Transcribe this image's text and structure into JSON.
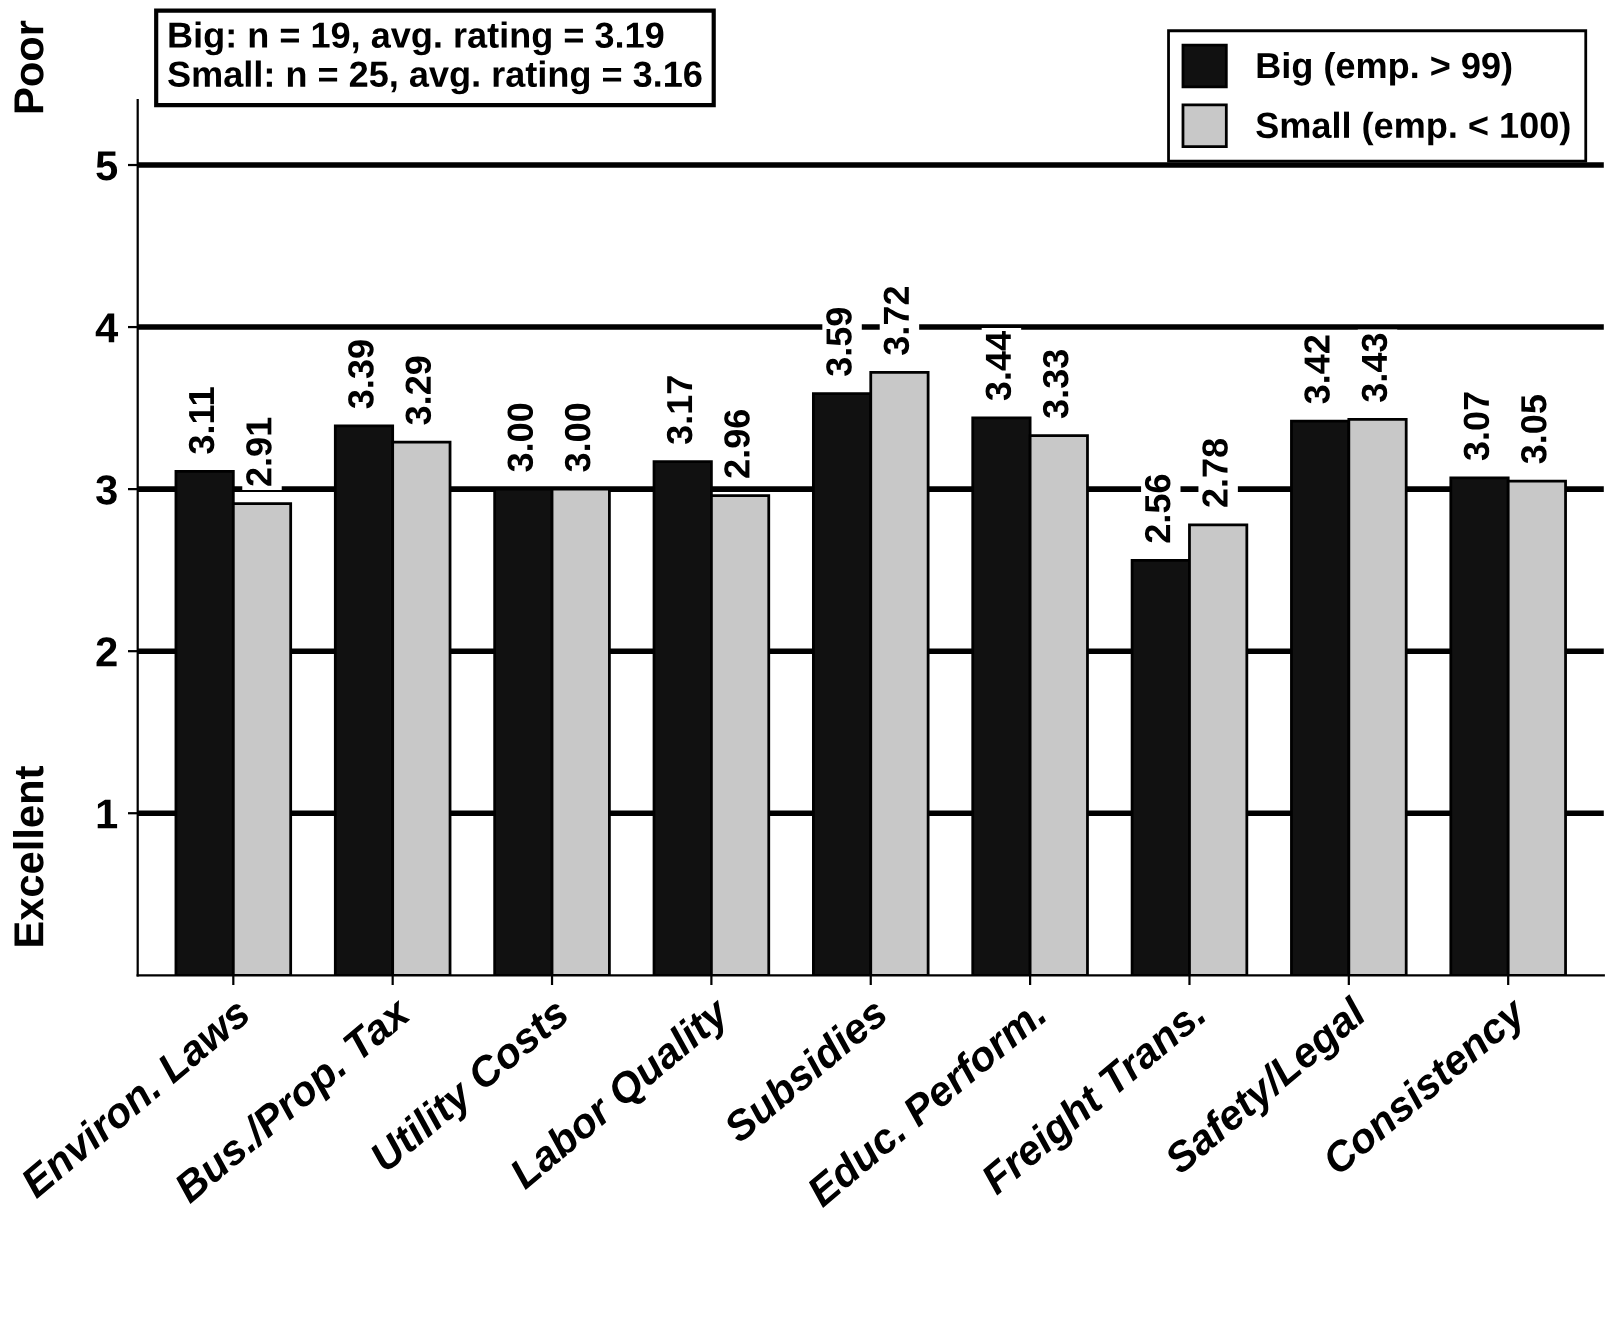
{
  "chart_data": {
    "type": "bar",
    "categories": [
      "Environ. Laws",
      "Bus./Prop. Tax",
      "Utility Costs",
      "Labor Quality",
      "Subsidies",
      "Educ. Perform.",
      "Freight Trans.",
      "Safety/Legal",
      "Consistency"
    ],
    "series": [
      {
        "name": "Big (emp. > 99)",
        "color": "#111111",
        "values": [
          3.11,
          3.39,
          3.0,
          3.17,
          3.59,
          3.44,
          2.56,
          3.42,
          3.07
        ],
        "value_labels": [
          "3.11",
          "3.39",
          "3.00",
          "3.17",
          "3.59",
          "3.44",
          "2.56",
          "3.42",
          "3.07"
        ]
      },
      {
        "name": "Small (emp. < 100)",
        "color": "#c8c8c8",
        "values": [
          2.91,
          3.29,
          3.0,
          2.96,
          3.72,
          3.33,
          2.78,
          3.43,
          3.05
        ],
        "value_labels": [
          "2.91",
          "3.29",
          "3.00",
          "2.96",
          "3.72",
          "3.33",
          "2.78",
          "3.43",
          "3.05"
        ]
      }
    ],
    "ylim": [
      0,
      5.4
    ],
    "yticks": [
      1,
      2,
      3,
      4,
      5
    ],
    "grid": "y",
    "legend": "top right",
    "annotations": [
      "Big: n = 19, avg. rating = 3.19\nSmall: n = 25, avg. rating = 3.16",
      "Poor",
      "Excellent"
    ]
  }
}
